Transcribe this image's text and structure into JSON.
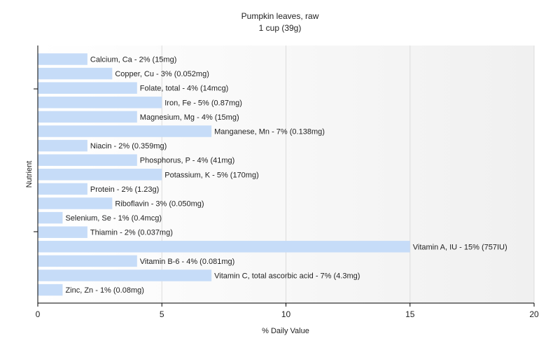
{
  "chart_data": {
    "type": "bar",
    "orientation": "horizontal",
    "title": "Pumpkin leaves, raw",
    "subtitle": "1 cup (39g)",
    "xlabel": "% Daily Value",
    "ylabel": "Nutrient",
    "xlim": [
      0,
      20
    ],
    "xticks": [
      0,
      5,
      10,
      15,
      20
    ],
    "grid": true,
    "bar_color": "#c6dcf8",
    "categories": [
      "Calcium, Ca",
      "Copper, Cu",
      "Folate, total",
      "Iron, Fe",
      "Magnesium, Mg",
      "Manganese, Mn",
      "Niacin",
      "Phosphorus, P",
      "Potassium, K",
      "Protein",
      "Riboflavin",
      "Selenium, Se",
      "Thiamin",
      "Vitamin A, IU",
      "Vitamin B-6",
      "Vitamin C, total ascorbic acid",
      "Zinc, Zn"
    ],
    "values": [
      2,
      3,
      4,
      5,
      4,
      7,
      2,
      4,
      5,
      2,
      3,
      1,
      2,
      15,
      4,
      7,
      1
    ],
    "labels": [
      "Calcium, Ca - 2% (15mg)",
      "Copper, Cu - 3% (0.052mg)",
      "Folate, total - 4% (14mcg)",
      "Iron, Fe - 5% (0.87mg)",
      "Magnesium, Mg - 4% (15mg)",
      "Manganese, Mn - 7% (0.138mg)",
      "Niacin - 2% (0.359mg)",
      "Phosphorus, P - 4% (41mg)",
      "Potassium, K - 5% (170mg)",
      "Protein - 2% (1.23g)",
      "Riboflavin - 3% (0.050mg)",
      "Selenium, Se - 1% (0.4mcg)",
      "Thiamin - 2% (0.037mg)",
      "Vitamin A, IU - 15% (757IU)",
      "Vitamin B-6 - 4% (0.081mg)",
      "Vitamin C, total ascorbic acid - 7% (4.3mg)",
      "Zinc, Zn - 1% (0.08mg)"
    ]
  }
}
